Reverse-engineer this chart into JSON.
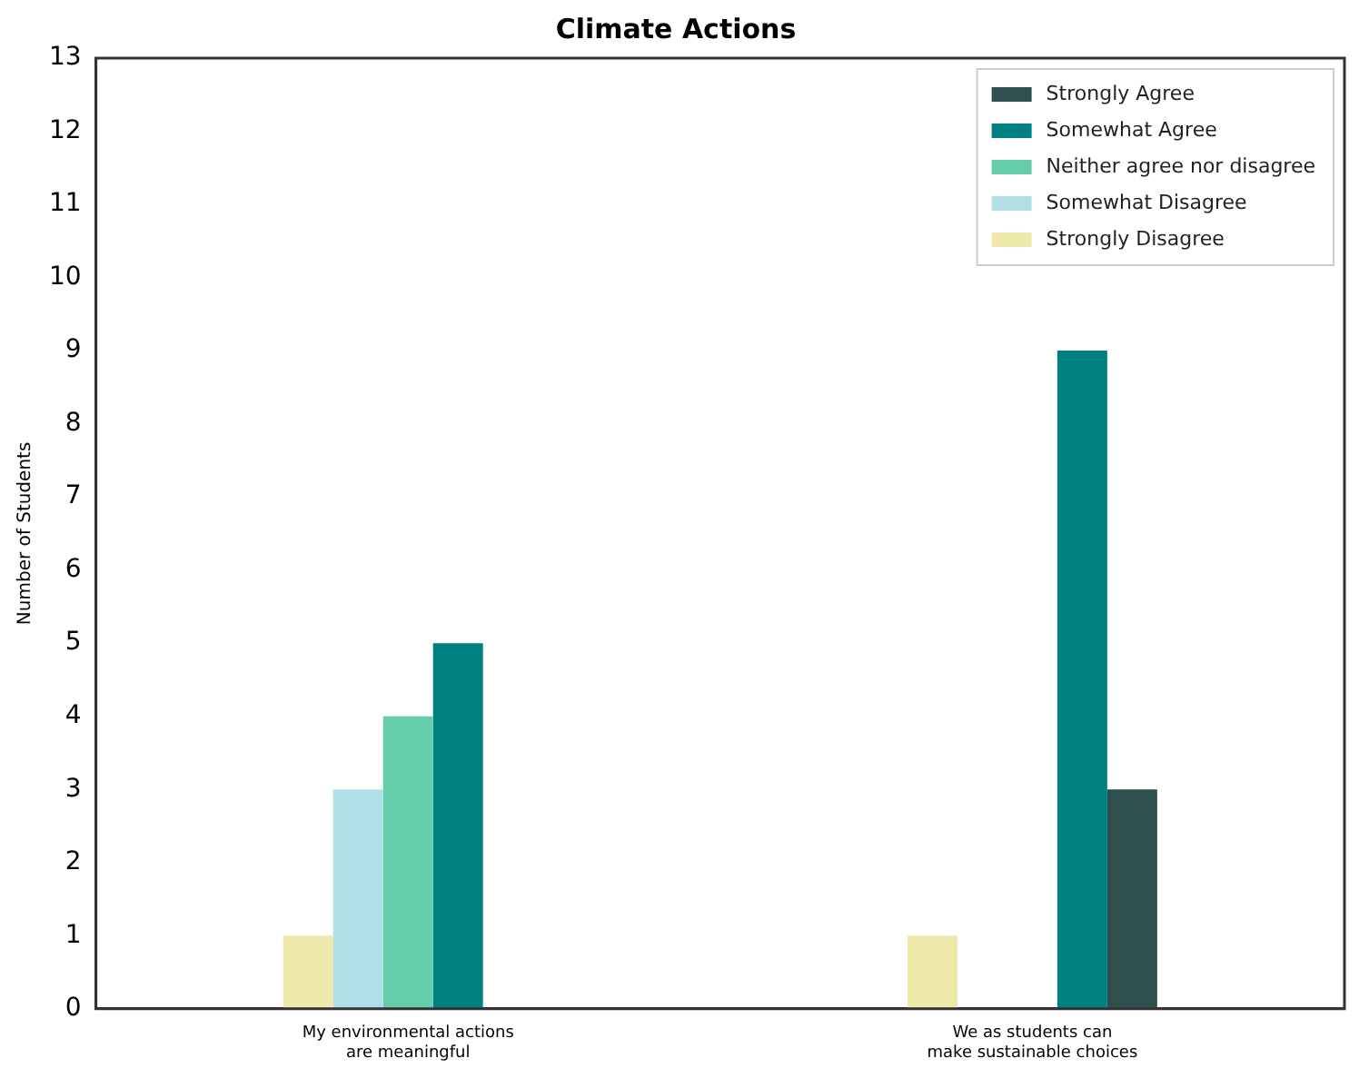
{
  "chart_data": {
    "type": "bar",
    "title": "Climate Actions",
    "ylabel": "Number of Students",
    "categories": [
      "My environmental actions are meaningful",
      "We as students can make sustainable choices"
    ],
    "series": [
      {
        "name": "Strongly Disagree",
        "color": "#eee8aa",
        "values": [
          1,
          1
        ]
      },
      {
        "name": "Somewhat Disagree",
        "color": "#b0e0e6",
        "values": [
          3,
          0
        ]
      },
      {
        "name": "Neither agree nor disagree",
        "color": "#66cdaa",
        "values": [
          4,
          0
        ]
      },
      {
        "name": "Somewhat Agree",
        "color": "#008080",
        "values": [
          5,
          9
        ]
      },
      {
        "name": "Strongly Agree",
        "color": "#2f4f4f",
        "values": [
          0,
          3
        ]
      }
    ],
    "ylim": [
      0,
      13
    ],
    "yticks": [
      0,
      1,
      2,
      3,
      4,
      5,
      6,
      7,
      8,
      9,
      10,
      11,
      12,
      13
    ],
    "grid": false,
    "legend": "top right"
  }
}
